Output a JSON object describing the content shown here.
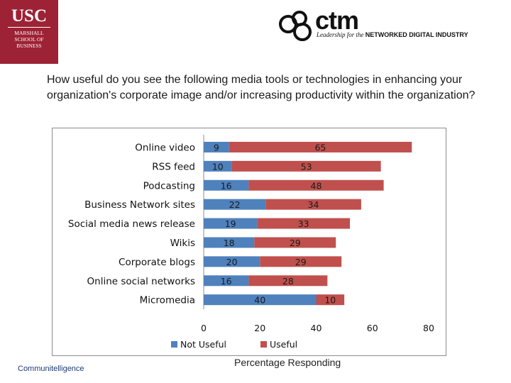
{
  "header": {
    "usc_logo": {
      "line1": "USC",
      "line2": "MARSHALL",
      "line3": "SCHOOL OF",
      "line4": "BUSINESS"
    },
    "ctm_logo": {
      "name": "ctm",
      "tagline_lead": "Leadership for the ",
      "tagline_strong": "NETWORKED DIGITAL INDUSTRY"
    }
  },
  "question": "How useful do you see the following media tools or technologies in enhancing your organization's corporate image and/or increasing productivity within the organization?",
  "footer": {
    "source": "Communitelligence",
    "axis_title": "Percentage Responding"
  },
  "chart_data": {
    "type": "bar",
    "orientation": "horizontal",
    "stacked": true,
    "categories": [
      "Online video",
      "RSS feed",
      "Podcasting",
      "Business Network sites",
      "Social media news release",
      "Wikis",
      "Corporate blogs",
      "Online social networks",
      "Micromedia"
    ],
    "series": [
      {
        "name": "Not Useful",
        "color": "#4f81bd",
        "values": [
          9,
          10,
          16,
          22,
          19,
          18,
          20,
          16,
          40
        ]
      },
      {
        "name": "Useful",
        "color": "#c0504d",
        "values": [
          65,
          53,
          48,
          34,
          33,
          29,
          29,
          28,
          10
        ]
      }
    ],
    "xlim": [
      0,
      80
    ],
    "xticks": [
      "0",
      "20",
      "40",
      "60",
      "80"
    ],
    "xlabel": "Percentage Responding",
    "legend_position": "bottom",
    "data_labels": true
  }
}
